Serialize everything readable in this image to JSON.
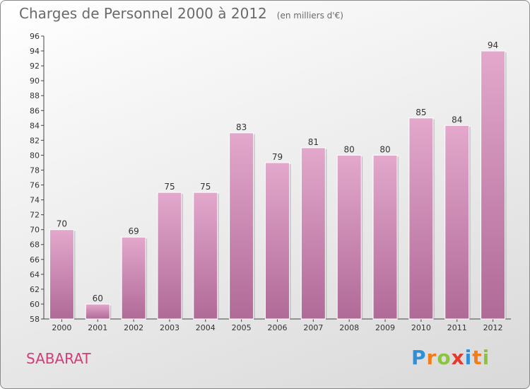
{
  "header": {
    "title": "Charges de Personnel 2000 à 2012",
    "subtitle": "(en milliers d'€)"
  },
  "commune": "SABARAT",
  "logo": {
    "text": "Proxiti",
    "letters": [
      {
        "ch": "P",
        "color": "#2f8fd8"
      },
      {
        "ch": "r",
        "color": "#f07d1a"
      },
      {
        "ch": "o",
        "color": "#8bc53f"
      },
      {
        "ch": "x",
        "color": "#e23b2e"
      },
      {
        "ch": "i",
        "color": "#2f8fd8"
      },
      {
        "ch": "t",
        "color": "#f07d1a"
      },
      {
        "ch": "i",
        "color": "#8bc53f"
      }
    ]
  },
  "colors": {
    "bar_top": "#e3a8cc",
    "bar_bottom": "#b06a97",
    "commune": "#d23c78"
  },
  "chart_data": {
    "type": "bar",
    "categories": [
      "2000",
      "2001",
      "2002",
      "2003",
      "2004",
      "2005",
      "2006",
      "2007",
      "2008",
      "2009",
      "2010",
      "2011",
      "2012"
    ],
    "values": [
      70,
      60,
      69,
      75,
      75,
      83,
      79,
      81,
      80,
      80,
      85,
      84,
      94
    ],
    "title": "Charges de Personnel 2000 à 2012",
    "xlabel": "",
    "ylabel": "",
    "ylim": [
      58,
      96
    ],
    "yticks": [
      58,
      60,
      62,
      64,
      66,
      68,
      70,
      72,
      74,
      76,
      78,
      80,
      82,
      84,
      86,
      88,
      90,
      92,
      94,
      96
    ],
    "grid": false,
    "data_labels": true
  }
}
